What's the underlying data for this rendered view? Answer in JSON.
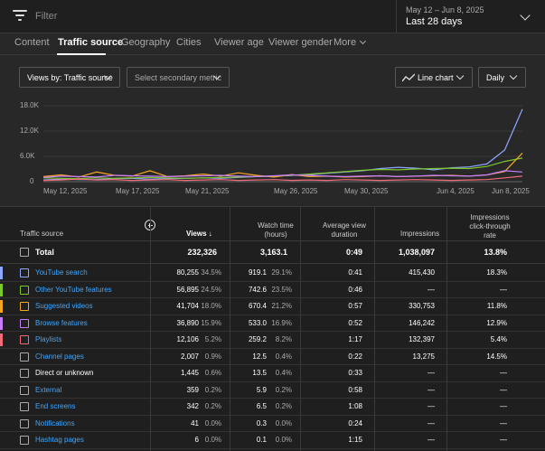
{
  "header": {
    "filter_placeholder": "Filter",
    "date_range": "May 12 – Jun 8, 2025",
    "date_label": "Last 28 days"
  },
  "tabs": [
    {
      "label": "Content"
    },
    {
      "label": "Traffic source"
    },
    {
      "label": "Geography"
    },
    {
      "label": "Cities"
    },
    {
      "label": "Viewer age"
    },
    {
      "label": "Viewer gender"
    },
    {
      "label": "More"
    }
  ],
  "controls": {
    "views_by": "Views by: Traffic source",
    "secondary_metric": "Select secondary metric",
    "chart_type": "Line chart",
    "interval": "Daily"
  },
  "chart_data": {
    "type": "line",
    "yticks": [
      "18.0K",
      "12.0K",
      "6.0K",
      "0"
    ],
    "ylim": [
      0,
      18000
    ],
    "xticks": [
      "May 12, 2025",
      "May 17, 2025",
      "May 21, 2025",
      "May 26, 2025",
      "May 30, 2025",
      "Jun 4, 2025",
      "Jun 8, 2025"
    ],
    "x": [
      "May 12",
      "May 13",
      "May 14",
      "May 15",
      "May 16",
      "May 17",
      "May 18",
      "May 19",
      "May 20",
      "May 21",
      "May 22",
      "May 23",
      "May 24",
      "May 25",
      "May 26",
      "May 27",
      "May 28",
      "May 29",
      "May 30",
      "May 31",
      "Jun 1",
      "Jun 2",
      "Jun 3",
      "Jun 4",
      "Jun 5",
      "Jun 6",
      "Jun 7",
      "Jun 8"
    ],
    "series": [
      {
        "color": "#8fa8ff",
        "values": [
          400,
          600,
          500,
          500,
          700,
          800,
          600,
          700,
          800,
          900,
          800,
          1000,
          1200,
          1300,
          1500,
          1700,
          2000,
          2300,
          2600,
          3100,
          3400,
          3200,
          2800,
          3300,
          3500,
          4200,
          7500,
          17200
        ]
      },
      {
        "color": "#7cc72a",
        "values": [
          900,
          800,
          700,
          900,
          800,
          900,
          1000,
          900,
          800,
          900,
          1000,
          1100,
          1200,
          1300,
          1500,
          1800,
          2100,
          2400,
          2700,
          2900,
          2800,
          3000,
          3100,
          3200,
          3100,
          3600,
          4800,
          5600
        ]
      },
      {
        "color": "#f5a623",
        "values": [
          1200,
          1600,
          1100,
          2300,
          1500,
          1300,
          2600,
          1200,
          1400,
          1800,
          1300,
          2100,
          1500,
          1100,
          1700,
          1200,
          1300,
          1100,
          1200,
          1400,
          1200,
          1300,
          1400,
          1500,
          1300,
          1600,
          2400,
          6800
        ]
      },
      {
        "color": "#c77dff",
        "values": [
          1000,
          1300,
          1200,
          1100,
          1500,
          1400,
          1300,
          1200,
          1300,
          1400,
          1500,
          1300,
          1200,
          1400,
          1600,
          1500,
          1300,
          1200,
          1300,
          1400,
          1200,
          1300,
          1500,
          1400,
          1300,
          1600,
          2600,
          2300
        ]
      },
      {
        "color": "#f26b7a",
        "values": [
          300,
          400,
          600,
          400,
          500,
          300,
          400,
          500,
          300,
          400,
          500,
          300,
          400,
          500,
          300,
          400,
          300,
          500,
          400,
          300,
          400,
          500,
          400,
          300,
          400,
          500,
          900,
          1300
        ]
      }
    ]
  },
  "table": {
    "headers": {
      "source": "Traffic source",
      "views": "Views",
      "watch_time_1": "Watch time",
      "watch_time_2": "(hours)",
      "avd_1": "Average view",
      "avd_2": "duration",
      "impressions": "Impressions",
      "ctr_1": "Impressions",
      "ctr_2": "click-through",
      "ctr_3": "rate"
    },
    "total": {
      "label": "Total",
      "views": "232,326",
      "watch": "3,163.1",
      "avd": "0:49",
      "impressions": "1,038,097",
      "ctr": "13.8%"
    },
    "rows": [
      {
        "name": "YouTube search",
        "color": "#8fa8ff",
        "link": true,
        "views": "80,255",
        "views_pct": "34.5%",
        "watch": "919.1",
        "watch_pct": "29.1%",
        "avd": "0:41",
        "impressions": "415,430",
        "ctr": "18.3%"
      },
      {
        "name": "Other YouTube features",
        "color": "#7cc72a",
        "link": true,
        "views": "56,895",
        "views_pct": "24.5%",
        "watch": "742.6",
        "watch_pct": "23.5%",
        "avd": "0:46",
        "impressions": "—",
        "ctr": "—"
      },
      {
        "name": "Suggested videos",
        "color": "#f5a623",
        "link": true,
        "views": "41,704",
        "views_pct": "18.0%",
        "watch": "670.4",
        "watch_pct": "21.2%",
        "avd": "0:57",
        "impressions": "330,753",
        "ctr": "11.8%"
      },
      {
        "name": "Browse features",
        "color": "#c77dff",
        "link": true,
        "views": "36,890",
        "views_pct": "15.9%",
        "watch": "533.0",
        "watch_pct": "16.9%",
        "avd": "0:52",
        "impressions": "146,242",
        "ctr": "12.9%"
      },
      {
        "name": "Playlists",
        "color": "#f26b7a",
        "link": true,
        "views": "12,106",
        "views_pct": "5.2%",
        "watch": "259.2",
        "watch_pct": "8.2%",
        "avd": "1:17",
        "impressions": "132,397",
        "ctr": "5.4%"
      },
      {
        "name": "Channel pages",
        "color": "",
        "link": true,
        "views": "2,007",
        "views_pct": "0.9%",
        "watch": "12.5",
        "watch_pct": "0.4%",
        "avd": "0:22",
        "impressions": "13,275",
        "ctr": "14.5%"
      },
      {
        "name": "Direct or unknown",
        "color": "",
        "link": false,
        "views": "1,445",
        "views_pct": "0.6%",
        "watch": "13.5",
        "watch_pct": "0.4%",
        "avd": "0:33",
        "impressions": "—",
        "ctr": "—"
      },
      {
        "name": "External",
        "color": "",
        "link": true,
        "views": "359",
        "views_pct": "0.2%",
        "watch": "5.9",
        "watch_pct": "0.2%",
        "avd": "0:58",
        "impressions": "—",
        "ctr": "—"
      },
      {
        "name": "End screens",
        "color": "",
        "link": true,
        "views": "342",
        "views_pct": "0.2%",
        "watch": "6.5",
        "watch_pct": "0.2%",
        "avd": "1:08",
        "impressions": "—",
        "ctr": "—"
      },
      {
        "name": "Notifications",
        "color": "",
        "link": true,
        "views": "41",
        "views_pct": "0.0%",
        "watch": "0.3",
        "watch_pct": "0.0%",
        "avd": "0:24",
        "impressions": "—",
        "ctr": "—"
      },
      {
        "name": "Hashtag pages",
        "color": "",
        "link": true,
        "views": "6",
        "views_pct": "0.0%",
        "watch": "0.1",
        "watch_pct": "0.0%",
        "avd": "1:15",
        "impressions": "—",
        "ctr": "—"
      }
    ]
  }
}
